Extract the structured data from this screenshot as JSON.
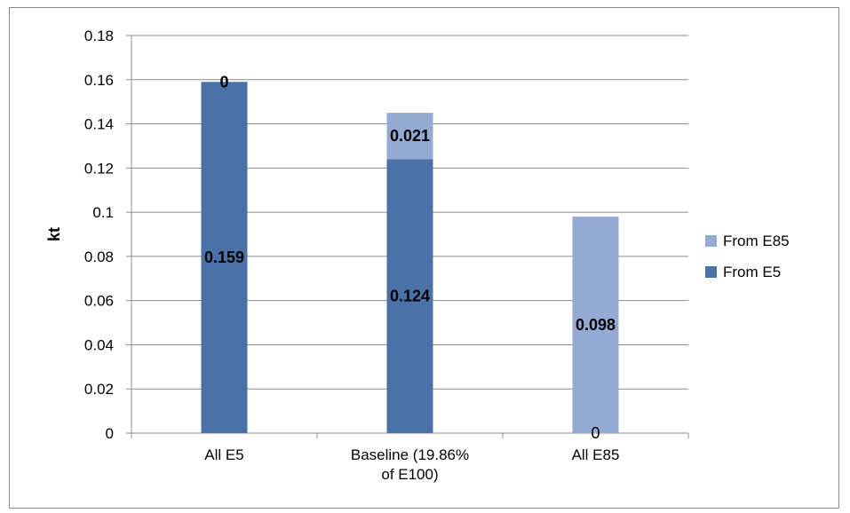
{
  "chart_data": {
    "type": "bar",
    "stacked": true,
    "categories": [
      [
        "All E5"
      ],
      [
        "Baseline (19.86%",
        "of E100)"
      ],
      [
        "All E85"
      ]
    ],
    "series": [
      {
        "name": "From E5",
        "color": "#4a72a8",
        "values": [
          0.159,
          0.124,
          0
        ],
        "labels": [
          "0.159",
          "0.124",
          "0"
        ]
      },
      {
        "name": "From E85",
        "color": "#94aad4",
        "values": [
          0,
          0.021,
          0.098
        ],
        "labels": [
          "0",
          "0.021",
          "0.098"
        ]
      }
    ],
    "ylabel": "kt",
    "xlabel": "",
    "ylim": [
      0,
      0.18
    ],
    "yticks": [
      "0",
      "0.02",
      "0.04",
      "0.06",
      "0.08",
      "0.1",
      "0.12",
      "0.14",
      "0.16",
      "0.18"
    ],
    "grid": true,
    "legend_position": "right",
    "legend": [
      "From E85",
      "From E5"
    ]
  }
}
